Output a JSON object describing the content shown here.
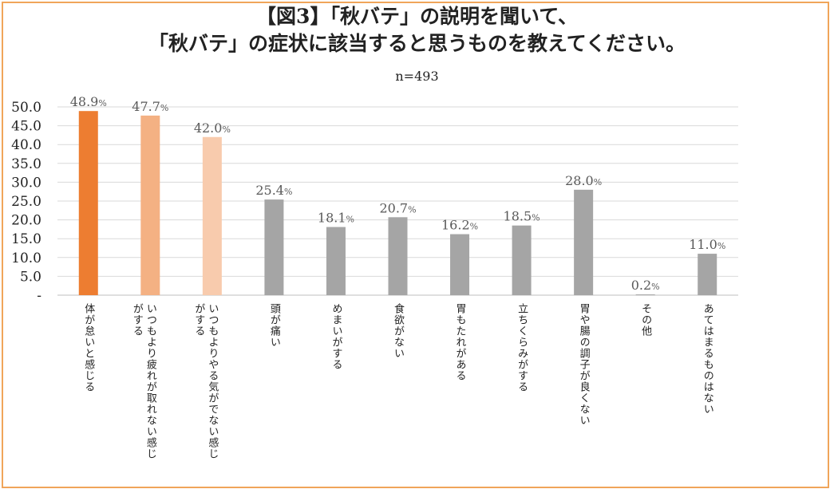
{
  "title_line1": "【図3】「秋バテ」の説明を聞いて、",
  "title_line2": "「秋バテ」の症状に該当すると思うものを教えてください。",
  "subtitle": "n=493",
  "colors": {
    "accent1": "#ed7d31",
    "accent2": "#f4b183",
    "accent3": "#f8cbad",
    "gray": "#a5a5a5",
    "frame": "#f0a55a"
  },
  "chart_data": {
    "type": "bar",
    "title": "【図3】「秋バテ」の説明を聞いて、「秋バテ」の症状に該当すると思うものを教えてください。",
    "subtitle": "n=493",
    "categories": [
      [
        "体が怠いと感じる"
      ],
      [
        "いつもより疲れが取れない感じ",
        "がする"
      ],
      [
        "いつもよりやる気がでない感じ",
        "がする"
      ],
      [
        "頭が痛い"
      ],
      [
        "めまいがする"
      ],
      [
        "食欲がない"
      ],
      [
        "胃もたれがある"
      ],
      [
        "立ちくらみがする"
      ],
      [
        "胃や腸の調子が良くない"
      ],
      [
        "その他"
      ],
      [
        "あてはまるものはない"
      ]
    ],
    "values": [
      48.9,
      47.7,
      42.0,
      25.4,
      18.1,
      20.7,
      16.2,
      18.5,
      28.0,
      0.2,
      11.0
    ],
    "value_labels": [
      "48.9",
      "47.7",
      "42.0",
      "25.4",
      "18.1",
      "20.7",
      "16.2",
      "18.5",
      "28.0",
      "0.2",
      "11.0"
    ],
    "value_suffix": "%",
    "ylim": [
      0,
      50
    ],
    "yticks": [
      "-",
      "5.0",
      "10.0",
      "15.0",
      "20.0",
      "25.0",
      "30.0",
      "35.0",
      "40.0",
      "45.0",
      "50.0"
    ],
    "ytick_values": [
      0,
      5,
      10,
      15,
      20,
      25,
      30,
      35,
      40,
      45,
      50
    ],
    "bar_colors": [
      "#ed7d31",
      "#f4b183",
      "#f8cbad",
      "#a5a5a5",
      "#a5a5a5",
      "#a5a5a5",
      "#a5a5a5",
      "#a5a5a5",
      "#a5a5a5",
      "#a5a5a5",
      "#a5a5a5"
    ],
    "grid": true,
    "xlabel": "",
    "ylabel": ""
  }
}
